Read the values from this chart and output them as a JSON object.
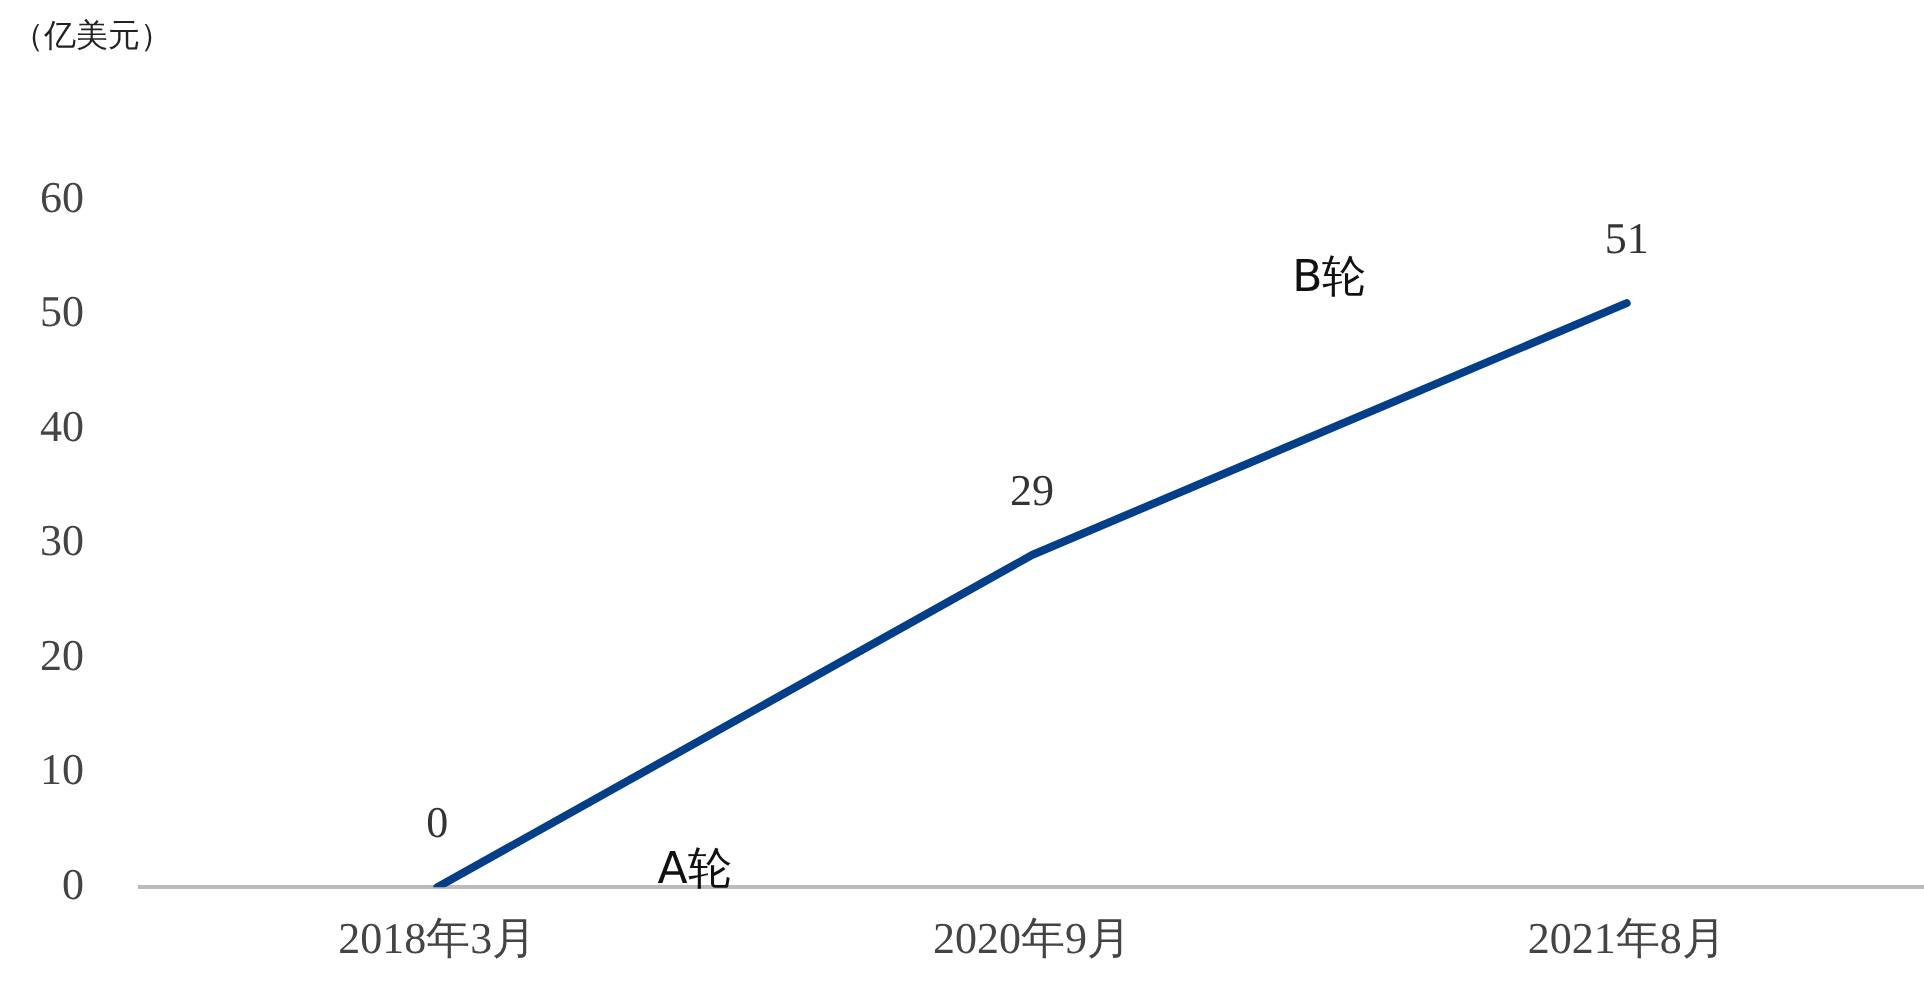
{
  "chart_data": {
    "type": "line",
    "ylabel": "（亿美元）",
    "categories": [
      "2018年3月",
      "2020年9月",
      "2021年8月"
    ],
    "series": [
      {
        "color": "#033f88",
        "values": [
          0,
          29,
          51
        ]
      }
    ],
    "ylim": [
      0,
      60
    ],
    "yticks": [
      0,
      10,
      20,
      30,
      40,
      50,
      60
    ],
    "grid": false,
    "legend": false,
    "marker": "none",
    "line_style": "solid",
    "data_labels": true,
    "annotations": [
      "A轮",
      "B轮"
    ]
  }
}
